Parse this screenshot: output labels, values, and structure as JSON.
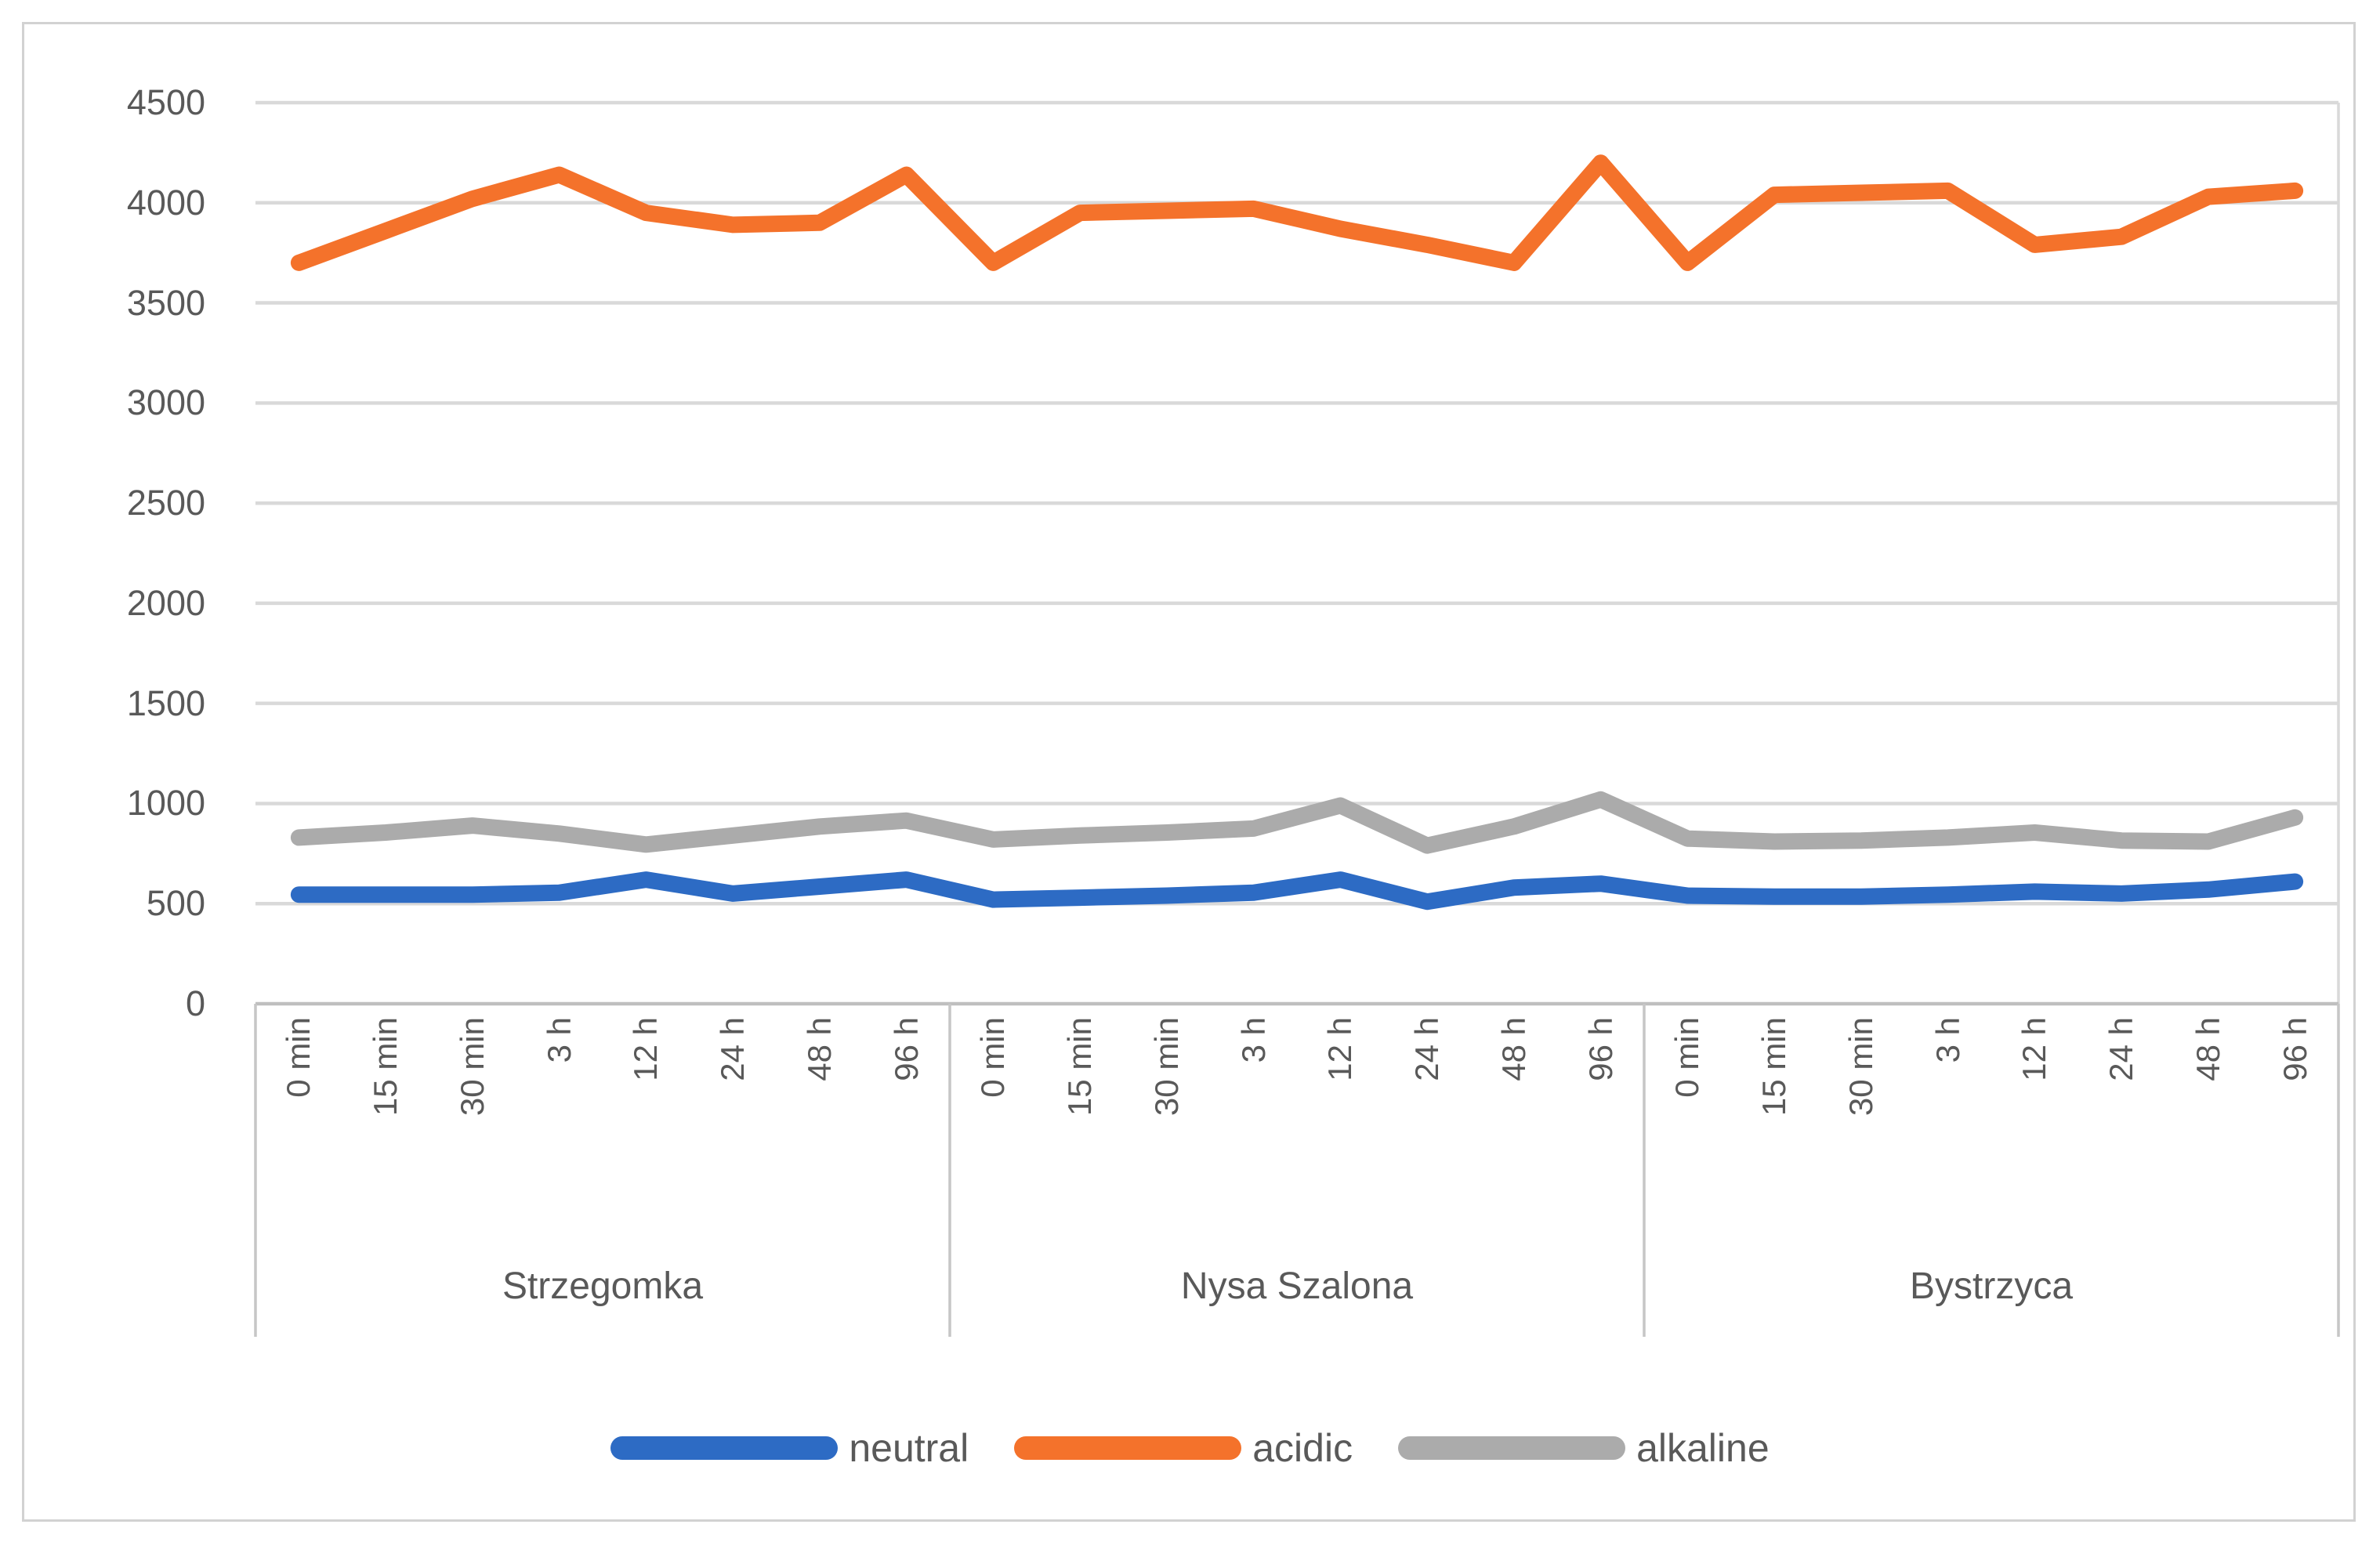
{
  "chart_data": {
    "type": "line",
    "title": "",
    "xlabel": "",
    "ylabel": "",
    "ylim": [
      0,
      4500
    ],
    "y_ticks": [
      0,
      500,
      1000,
      1500,
      2000,
      2500,
      3000,
      3500,
      4000,
      4500
    ],
    "grid": "horizontal",
    "legend_position": "bottom",
    "time_labels": [
      "0 min",
      "15 min",
      "30 min",
      "3 h",
      "12 h",
      "24 h",
      "48 h",
      "96 h"
    ],
    "groups": [
      "Strzegomka",
      "Nysa Szalona",
      "Bystrzyca"
    ],
    "categories": [
      "0 min",
      "15 min",
      "30 min",
      "3 h",
      "12 h",
      "24 h",
      "48 h",
      "96 h",
      "0 min",
      "15 min",
      "30 min",
      "3 h",
      "12 h",
      "24 h",
      "48 h",
      "96 h",
      "0 min",
      "15 min",
      "30 min",
      "3 h",
      "12 h",
      "24 h",
      "48 h",
      "96 h"
    ],
    "series": [
      {
        "name": "neutral",
        "color": "#2d6bc4",
        "values": [
          545,
          545,
          545,
          555,
          620,
          550,
          585,
          620,
          520,
          530,
          540,
          555,
          620,
          510,
          580,
          600,
          540,
          535,
          535,
          545,
          560,
          550,
          570,
          610
        ]
      },
      {
        "name": "acidic",
        "color": "#f4722b",
        "values": [
          3700,
          3860,
          4020,
          4140,
          3950,
          3890,
          3900,
          4140,
          3700,
          3950,
          3960,
          3970,
          3870,
          3790,
          3700,
          4200,
          3700,
          4040,
          4050,
          4060,
          3790,
          3830,
          4030,
          4060
        ]
      },
      {
        "name": "alkaline",
        "color": "#ababab",
        "values": [
          830,
          855,
          890,
          850,
          795,
          840,
          885,
          915,
          820,
          840,
          855,
          875,
          990,
          790,
          885,
          1020,
          825,
          810,
          815,
          830,
          855,
          815,
          810,
          930
        ]
      }
    ]
  },
  "colors": {
    "gridline": "#d9d9d9",
    "axis_line": "#bfbfbf",
    "separator": "#c6c6c6",
    "text": "#595959",
    "background": "#ffffff",
    "frame_border": "#d2d2d2"
  }
}
